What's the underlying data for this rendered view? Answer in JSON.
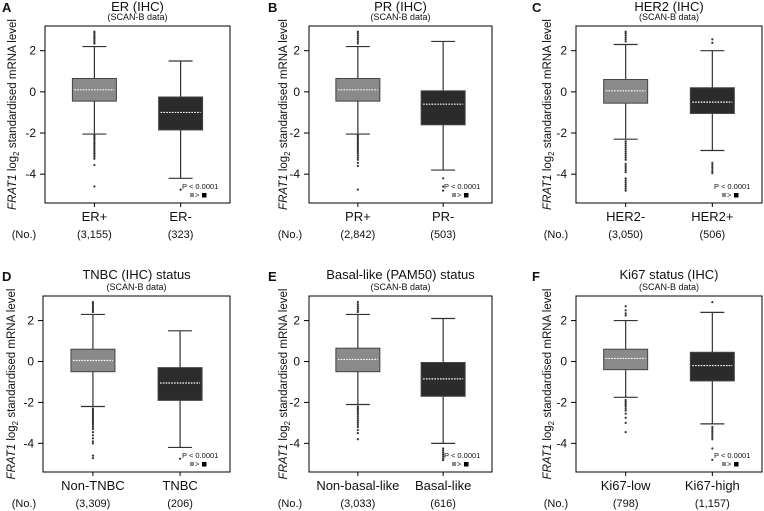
{
  "figure": {
    "ylabel_gene": "FRAT1",
    "ylabel_log": " log",
    "ylabel_sub": "2",
    "ylabel_rest": " standardised mRNA level",
    "n_label": "(No.)",
    "pvalue": "P < 0.0001",
    "comparison": ">",
    "colors": {
      "high_group": "#8a8a8a",
      "low_group": "#2b2b2b",
      "median": "#ffffff",
      "whisker": "#333333",
      "frame": "#000000",
      "outlier": "#333333"
    }
  },
  "chart_data": [
    {
      "panel": "A",
      "type": "box",
      "title": "ER (IHC)",
      "subtitle": "(SCAN-B data)",
      "ylabel": "FRAT1 log2 standardised mRNA level",
      "ylim": [
        -5.4,
        3.2
      ],
      "yticks": [
        2,
        0,
        -2,
        -4
      ],
      "ytick_labels": [
        "2",
        "0",
        "-2",
        "-4"
      ],
      "grid": false,
      "legend": "bottom-right",
      "annotation": "P < 0.0001",
      "categories": [
        "ER+",
        "ER-"
      ],
      "counts": [
        "(3,155)",
        "(323)"
      ],
      "series": [
        {
          "name": "ER+",
          "group": "high_group",
          "whisker_low": -2.05,
          "q1": -0.45,
          "median": 0.1,
          "q3": 0.65,
          "whisker_high": 2.2,
          "outliers": [
            2.35,
            2.42,
            2.5,
            2.58,
            2.65,
            2.72,
            2.8,
            2.88,
            2.93,
            -2.12,
            -2.2,
            -2.28,
            -2.36,
            -2.44,
            -2.52,
            -2.6,
            -2.68,
            -2.76,
            -2.84,
            -2.92,
            -3.0,
            -3.08,
            -3.16,
            -3.25,
            -3.55,
            -4.6
          ]
        },
        {
          "name": "ER-",
          "group": "low_group",
          "whisker_low": -4.2,
          "q1": -1.85,
          "median": -1.0,
          "q3": -0.25,
          "whisker_high": 1.5,
          "outliers": [
            -4.75
          ]
        }
      ]
    },
    {
      "panel": "B",
      "type": "box",
      "title": "PR (IHC)",
      "subtitle": "(SCAN-B data)",
      "ylabel": "FRAT1 log2 standardised mRNA level",
      "ylim": [
        -5.4,
        3.2
      ],
      "yticks": [
        2,
        0,
        -2,
        -4
      ],
      "ytick_labels": [
        "2",
        "0",
        "-2",
        "-4"
      ],
      "grid": false,
      "legend": "bottom-right",
      "annotation": "P < 0.0001",
      "categories": [
        "PR+",
        "PR-"
      ],
      "counts": [
        "(2,842)",
        "(503)"
      ],
      "series": [
        {
          "name": "PR+",
          "group": "high_group",
          "whisker_low": -2.05,
          "q1": -0.45,
          "median": 0.1,
          "q3": 0.65,
          "whisker_high": 2.2,
          "outliers": [
            2.35,
            2.45,
            2.55,
            2.65,
            2.75,
            2.85,
            2.92,
            -2.12,
            -2.2,
            -2.28,
            -2.36,
            -2.44,
            -2.52,
            -2.6,
            -2.68,
            -2.76,
            -2.84,
            -2.92,
            -3.0,
            -3.1,
            -3.2,
            -3.3,
            -3.45,
            -3.6,
            -4.75
          ]
        },
        {
          "name": "PR-",
          "group": "low_group",
          "whisker_low": -3.8,
          "q1": -1.6,
          "median": -0.6,
          "q3": 0.05,
          "whisker_high": 2.45,
          "outliers": [
            -4.2,
            -4.6,
            -4.8
          ]
        }
      ]
    },
    {
      "panel": "C",
      "type": "box",
      "title": "HER2 (IHC)",
      "subtitle": "(SCAN-B data)",
      "ylabel": "FRAT1 log2 standardised mRNA level",
      "ylim": [
        -5.4,
        3.2
      ],
      "yticks": [
        2,
        0,
        -2,
        -4
      ],
      "ytick_labels": [
        "2",
        "0",
        "-2",
        "-4"
      ],
      "grid": false,
      "legend": "bottom-right",
      "annotation": "P < 0.0001",
      "categories": [
        "HER2-",
        "HER2+"
      ],
      "counts": [
        "(3,050)",
        "(506)"
      ],
      "series": [
        {
          "name": "HER2-",
          "group": "high_group",
          "whisker_low": -2.3,
          "q1": -0.55,
          "median": 0.05,
          "q3": 0.6,
          "whisker_high": 2.3,
          "outliers": [
            2.45,
            2.55,
            2.65,
            2.75,
            2.85,
            2.92,
            -2.4,
            -2.5,
            -2.6,
            -2.7,
            -2.8,
            -2.9,
            -3.0,
            -3.1,
            -3.2,
            -3.3,
            -3.5,
            -3.6,
            -3.7,
            -3.8,
            -3.9,
            -4.2,
            -4.3,
            -4.4,
            -4.5,
            -4.6,
            -4.7,
            -4.8
          ]
        },
        {
          "name": "HER2+",
          "group": "low_group",
          "whisker_low": -2.85,
          "q1": -1.05,
          "median": -0.5,
          "q3": 0.2,
          "whisker_high": 2.0,
          "outliers": [
            2.38,
            2.55,
            -3.45,
            -3.55,
            -3.65,
            -3.75,
            -3.85,
            -3.95
          ]
        }
      ]
    },
    {
      "panel": "D",
      "type": "box",
      "title": "TNBC (IHC) status",
      "subtitle": "(SCAN-B data)",
      "ylabel": "FRAT1 log2 standardised mRNA level",
      "ylim": [
        -5.4,
        3.2
      ],
      "yticks": [
        2,
        0,
        -2,
        -4
      ],
      "ytick_labels": [
        "2",
        "0",
        "-2",
        "-4"
      ],
      "grid": false,
      "legend": "bottom-right",
      "annotation": "P < 0.0001",
      "categories": [
        "Non-TNBC",
        "TNBC"
      ],
      "counts": [
        "(3,309)",
        "(206)"
      ],
      "series": [
        {
          "name": "Non-TNBC",
          "group": "high_group",
          "whisker_low": -2.2,
          "q1": -0.5,
          "median": 0.05,
          "q3": 0.6,
          "whisker_high": 2.3,
          "outliers": [
            2.42,
            2.5,
            2.58,
            2.66,
            2.74,
            2.82,
            2.9,
            -2.3,
            -2.38,
            -2.46,
            -2.54,
            -2.62,
            -2.7,
            -2.78,
            -2.86,
            -2.94,
            -3.02,
            -3.1,
            -3.2,
            -3.3,
            -3.45,
            -3.6,
            -3.75,
            -3.9,
            -4.0,
            -4.6,
            -4.72
          ]
        },
        {
          "name": "TNBC",
          "group": "low_group",
          "whisker_low": -4.2,
          "q1": -1.9,
          "median": -1.05,
          "q3": -0.3,
          "whisker_high": 1.5,
          "outliers": [
            -4.75
          ]
        }
      ]
    },
    {
      "panel": "E",
      "type": "box",
      "title": "Basal-like (PAM50) status",
      "subtitle": "(SCAN-B data)",
      "ylabel": "FRAT1 log2 standardised mRNA level",
      "ylim": [
        -5.4,
        3.2
      ],
      "yticks": [
        2,
        0,
        -2,
        -4
      ],
      "ytick_labels": [
        "2",
        "0",
        "-2",
        "-4"
      ],
      "grid": false,
      "legend": "bottom-right",
      "annotation": "P < 0.0001",
      "categories": [
        "Non-basal-like",
        "Basal-like"
      ],
      "counts": [
        "(3,033)",
        "(616)"
      ],
      "series": [
        {
          "name": "Non-basal-like",
          "group": "high_group",
          "whisker_low": -2.1,
          "q1": -0.5,
          "median": 0.1,
          "q3": 0.65,
          "whisker_high": 2.3,
          "outliers": [
            2.42,
            2.5,
            2.6,
            2.7,
            2.8,
            2.9,
            -2.2,
            -2.28,
            -2.36,
            -2.44,
            -2.52,
            -2.6,
            -2.7,
            -2.8,
            -2.9,
            -3.0,
            -3.1,
            -3.2,
            -3.35,
            -3.5,
            -3.8
          ]
        },
        {
          "name": "Basal-like",
          "group": "low_group",
          "whisker_low": -4.0,
          "q1": -1.7,
          "median": -0.85,
          "q3": -0.05,
          "whisker_high": 2.1,
          "outliers": [
            -4.25,
            -4.35,
            -4.45,
            -4.55,
            -4.65,
            -4.75,
            -4.82
          ]
        }
      ]
    },
    {
      "panel": "F",
      "type": "box",
      "title": "Ki67 status (IHC)",
      "subtitle": "(SCAN-B data)",
      "ylabel": "FRAT1 log2 standardised mRNA level",
      "ylim": [
        -5.4,
        3.2
      ],
      "yticks": [
        2,
        0,
        -2,
        -4
      ],
      "ytick_labels": [
        "2",
        "0",
        "-2",
        "-4"
      ],
      "grid": false,
      "legend": "bottom-right",
      "annotation": "P < 0.0001",
      "categories": [
        "Ki67-low",
        "Ki67-high"
      ],
      "counts": [
        "(798)",
        "(1,157)"
      ],
      "series": [
        {
          "name": "Ki67-low",
          "group": "high_group",
          "whisker_low": -1.75,
          "q1": -0.4,
          "median": 0.15,
          "q3": 0.6,
          "whisker_high": 2.0,
          "outliers": [
            2.25,
            2.35,
            2.5,
            2.7,
            -1.88,
            -1.96,
            -2.04,
            -2.12,
            -2.2,
            -2.3,
            -2.4,
            -2.55,
            -2.75,
            -3.0,
            -3.45
          ]
        },
        {
          "name": "Ki67-high",
          "group": "low_group",
          "whisker_low": -3.05,
          "q1": -0.95,
          "median": -0.2,
          "q3": 0.45,
          "whisker_high": 2.4,
          "outliers": [
            2.9,
            -3.2,
            -3.3,
            -3.4,
            -3.5,
            -3.6,
            -3.7,
            -3.8,
            -4.25,
            -4.8
          ]
        }
      ]
    }
  ]
}
